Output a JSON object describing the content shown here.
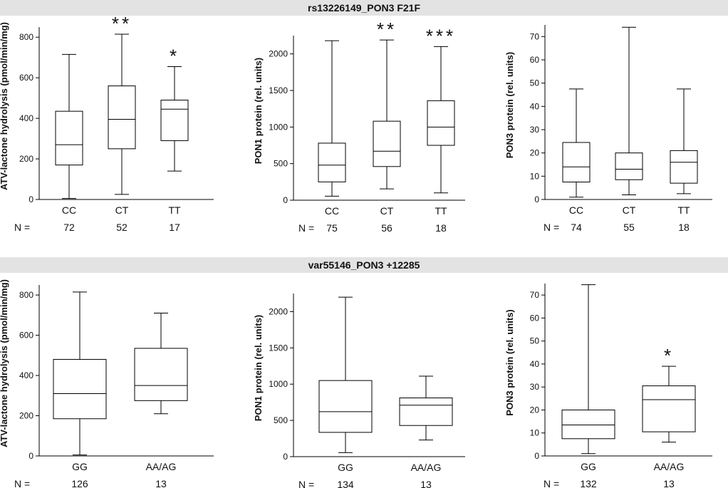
{
  "sections": [
    {
      "title": "rs13226149_PON3 F21F",
      "n_label": "N ="
    },
    {
      "title": "var55146_PON3 +12285",
      "n_label": "N ="
    }
  ],
  "chart_data": [
    {
      "type": "box",
      "row": 0,
      "ylabel": "ATV-lactone hydrolysis (pmol/min/mg)",
      "ylim": [
        0,
        850
      ],
      "yticks": [
        0,
        200,
        400,
        600,
        800
      ],
      "categories": [
        "CC",
        "CT",
        "TT"
      ],
      "n": [
        "72",
        "52",
        "17"
      ],
      "significance": [
        "",
        "**",
        "*"
      ],
      "boxes": [
        {
          "min": 5,
          "q1": 170,
          "median": 270,
          "q3": 435,
          "max": 715
        },
        {
          "min": 25,
          "q1": 250,
          "median": 395,
          "q3": 560,
          "max": 815
        },
        {
          "min": 140,
          "q1": 290,
          "median": 445,
          "q3": 490,
          "max": 655
        }
      ]
    },
    {
      "type": "box",
      "row": 0,
      "ylabel": "PON1 protein (rel. units)",
      "ylim": [
        0,
        2250
      ],
      "yticks": [
        0,
        500,
        1000,
        1500,
        2000
      ],
      "categories": [
        "CC",
        "CT",
        "TT"
      ],
      "n": [
        "75",
        "56",
        "18"
      ],
      "significance": [
        "",
        "**",
        "***"
      ],
      "boxes": [
        {
          "min": 55,
          "q1": 250,
          "median": 480,
          "q3": 780,
          "max": 2180
        },
        {
          "min": 155,
          "q1": 460,
          "median": 670,
          "q3": 1080,
          "max": 2190
        },
        {
          "min": 100,
          "q1": 750,
          "median": 1000,
          "q3": 1360,
          "max": 2100
        }
      ]
    },
    {
      "type": "box",
      "row": 0,
      "ylabel": "PON3 protein (rel. units)",
      "ylim": [
        0,
        75
      ],
      "yticks": [
        0,
        10,
        20,
        30,
        40,
        50,
        60,
        70
      ],
      "categories": [
        "CC",
        "CT",
        "TT"
      ],
      "n": [
        "74",
        "55",
        "18"
      ],
      "significance": [
        "",
        "",
        ""
      ],
      "boxes": [
        {
          "min": 1,
          "q1": 7.5,
          "median": 14,
          "q3": 24.5,
          "max": 47.5
        },
        {
          "min": 2,
          "q1": 8.5,
          "median": 13,
          "q3": 20,
          "max": 74
        },
        {
          "min": 2.5,
          "q1": 7,
          "median": 16,
          "q3": 21,
          "max": 47.5
        }
      ]
    },
    {
      "type": "box",
      "row": 1,
      "ylabel": "ATV-lactone hydrolysis (pmol/min/mg)",
      "ylim": [
        0,
        850
      ],
      "yticks": [
        0,
        200,
        400,
        600,
        800
      ],
      "categories": [
        "GG",
        "AA/AG"
      ],
      "n": [
        "126",
        "13"
      ],
      "significance": [
        "",
        ""
      ],
      "boxes": [
        {
          "min": 5,
          "q1": 185,
          "median": 310,
          "q3": 480,
          "max": 815
        },
        {
          "min": 210,
          "q1": 275,
          "median": 350,
          "q3": 535,
          "max": 710
        }
      ]
    },
    {
      "type": "box",
      "row": 1,
      "ylabel": "PON1 protein (rel. units)",
      "ylim": [
        0,
        2250
      ],
      "yticks": [
        0,
        500,
        1000,
        1500,
        2000
      ],
      "categories": [
        "GG",
        "AA/AG"
      ],
      "n": [
        "134",
        "13"
      ],
      "significance": [
        "",
        ""
      ],
      "boxes": [
        {
          "min": 55,
          "q1": 335,
          "median": 620,
          "q3": 1050,
          "max": 2200
        },
        {
          "min": 230,
          "q1": 430,
          "median": 710,
          "q3": 810,
          "max": 1110
        }
      ]
    },
    {
      "type": "box",
      "row": 1,
      "ylabel": "PON3 protein (rel. units)",
      "ylim": [
        0,
        75
      ],
      "yticks": [
        0,
        10,
        20,
        30,
        40,
        50,
        60,
        70
      ],
      "categories": [
        "GG",
        "AA/AG"
      ],
      "n": [
        "132",
        "13"
      ],
      "significance": [
        "",
        "*"
      ],
      "boxes": [
        {
          "min": 1,
          "q1": 7.5,
          "median": 13.5,
          "q3": 20,
          "max": 74.5
        },
        {
          "min": 6,
          "q1": 10.5,
          "median": 24.5,
          "q3": 30.5,
          "max": 39
        }
      ]
    }
  ]
}
